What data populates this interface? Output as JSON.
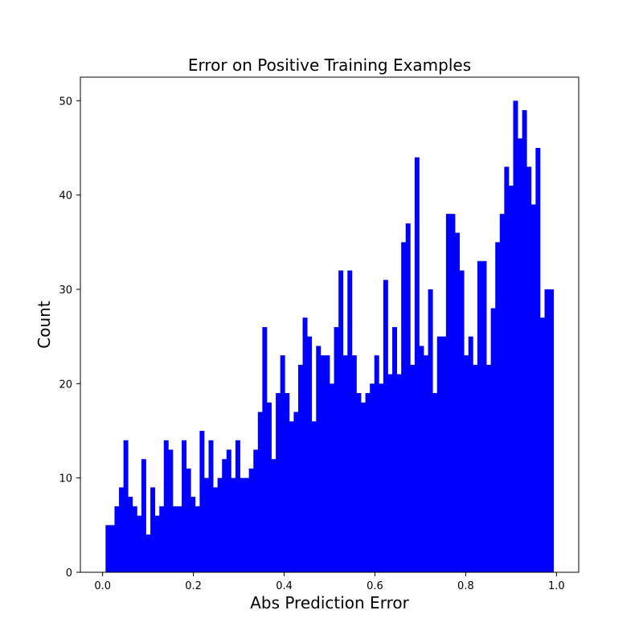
{
  "chart_data": {
    "type": "bar",
    "title": "Error on Positive Training Examples",
    "xlabel": "Abs Prediction Error",
    "ylabel": "Count",
    "xlim": [
      -0.049,
      1.049
    ],
    "ylim": [
      0,
      52.5
    ],
    "xticks": [
      "0.0",
      "0.2",
      "0.4",
      "0.6",
      "0.8",
      "1.0"
    ],
    "yticks": [
      "0",
      "10",
      "20",
      "30",
      "40",
      "50"
    ],
    "bar_color": "#0000ff",
    "grid": false,
    "legend": "none",
    "bin_range": [
      0.0065,
      0.9935
    ],
    "bin_count": 100,
    "counts": [
      5,
      5,
      7,
      9,
      14,
      8,
      7,
      6,
      12,
      4,
      9,
      6,
      7,
      14,
      13,
      7,
      7,
      14,
      11,
      8,
      7,
      15,
      10,
      14,
      9,
      10,
      12,
      13,
      10,
      14,
      10,
      10,
      11,
      13,
      17,
      26,
      18,
      12,
      19,
      23,
      19,
      16,
      17,
      22,
      27,
      25,
      16,
      24,
      23,
      23,
      20,
      26,
      32,
      23,
      32,
      23,
      19,
      18,
      19,
      20,
      23,
      20,
      31,
      21,
      26,
      21,
      35,
      37,
      22,
      44,
      24,
      23,
      30,
      19,
      25,
      25,
      38,
      38,
      36,
      32,
      23,
      25,
      22,
      33,
      33,
      22,
      28,
      35,
      38,
      43,
      41,
      50,
      46,
      49,
      43,
      39,
      45,
      27,
      30,
      30
    ]
  }
}
